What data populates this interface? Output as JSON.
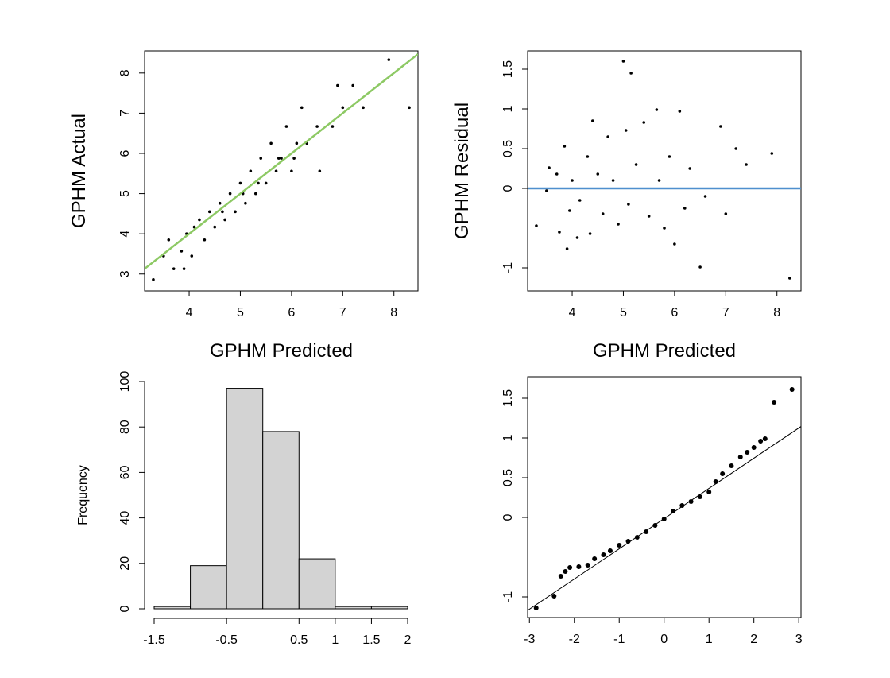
{
  "chart_data": [
    {
      "type": "scatter",
      "xlabel": "GPHM Predicted",
      "ylabel": "GPHM Actual",
      "x": [
        3.3,
        3.5,
        3.6,
        3.7,
        3.85,
        3.9,
        3.95,
        4.05,
        4.1,
        4.2,
        4.3,
        4.4,
        4.5,
        4.6,
        4.7,
        4.8,
        4.9,
        5.0,
        5.1,
        5.2,
        5.3,
        5.4,
        5.5,
        5.6,
        5.7,
        5.8,
        5.9,
        6.0,
        6.1,
        6.2,
        6.3,
        6.5,
        6.55,
        6.8,
        6.9,
        7.0,
        7.2,
        7.4,
        7.9,
        8.3,
        5.05,
        5.35,
        4.65,
        5.75,
        6.05
      ],
      "values": [
        2.86,
        3.45,
        3.85,
        3.13,
        3.57,
        3.13,
        4.0,
        3.45,
        4.17,
        4.35,
        3.85,
        4.55,
        4.17,
        4.76,
        4.35,
        5.0,
        4.55,
        5.26,
        4.76,
        5.56,
        5.0,
        5.88,
        5.26,
        6.25,
        5.56,
        5.88,
        6.67,
        5.56,
        6.25,
        7.14,
        6.25,
        6.67,
        5.56,
        6.67,
        7.69,
        7.14,
        7.69,
        7.14,
        8.33,
        7.14,
        5.0,
        5.26,
        4.55,
        5.88,
        5.88
      ],
      "color": "#000000",
      "xlim": [
        3.13,
        8.47
      ],
      "ylim": [
        2.58,
        8.55
      ],
      "xticks": [
        4,
        5,
        6,
        7,
        8
      ],
      "yticks": [
        3,
        4,
        5,
        6,
        7,
        8
      ],
      "line": {
        "intercept": 0,
        "slope": 1,
        "color": "#8dc964"
      }
    },
    {
      "type": "scatter",
      "xlabel": "GPHM Predicted",
      "ylabel": "GPHM Residual",
      "x": [
        3.3,
        3.5,
        3.55,
        3.7,
        3.75,
        3.85,
        3.9,
        3.95,
        4.0,
        4.1,
        4.15,
        4.3,
        4.35,
        4.4,
        4.5,
        4.6,
        4.7,
        4.8,
        4.9,
        5.0,
        5.05,
        5.15,
        5.1,
        5.25,
        5.4,
        5.5,
        5.65,
        5.7,
        5.8,
        5.9,
        6.0,
        6.1,
        6.2,
        6.3,
        6.5,
        6.6,
        6.9,
        7.0,
        7.2,
        7.4,
        7.9,
        8.25
      ],
      "values": [
        -0.47,
        -0.03,
        0.26,
        0.18,
        -0.55,
        0.53,
        -0.76,
        -0.28,
        0.1,
        -0.62,
        -0.15,
        0.4,
        -0.57,
        0.85,
        0.18,
        -0.32,
        0.65,
        0.1,
        -0.45,
        1.6,
        0.73,
        1.45,
        -0.2,
        0.3,
        0.83,
        -0.35,
        0.99,
        0.1,
        -0.5,
        0.4,
        -0.7,
        0.97,
        -0.25,
        0.25,
        -0.99,
        -0.1,
        0.78,
        -0.32,
        0.5,
        0.3,
        0.44,
        -1.13
      ],
      "color": "#000000",
      "xlim": [
        3.13,
        8.47
      ],
      "ylim": [
        -1.29,
        1.73
      ],
      "xticks": [
        4,
        5,
        6,
        7,
        8
      ],
      "yticks": [
        -1.0,
        0.0,
        0.5,
        1.0,
        1.5
      ],
      "hline": {
        "value": 0,
        "color": "#4f8fce"
      }
    },
    {
      "type": "histogram",
      "ylabel": "Frequency",
      "bins": [
        -1.5,
        -1.0,
        -0.5,
        0.0,
        0.5,
        1.0,
        1.5,
        2.0
      ],
      "counts": [
        1,
        19,
        97,
        78,
        22,
        1,
        1
      ],
      "color": "#d3d3d3",
      "xlim": [
        -1.5,
        2.0
      ],
      "ylim": [
        0,
        100
      ],
      "xticks": [
        -1.5,
        -0.5,
        0.5,
        1.0,
        1.5,
        2.0
      ],
      "yticks": [
        0,
        20,
        40,
        60,
        80,
        100
      ]
    },
    {
      "type": "scatter",
      "x": [
        -2.85,
        -2.45,
        -2.3,
        -2.2,
        -2.1,
        -1.9,
        -1.7,
        -1.55,
        -1.35,
        -1.2,
        -1.0,
        -0.8,
        -0.6,
        -0.4,
        -0.2,
        0,
        0.2,
        0.4,
        0.6,
        0.8,
        1.0,
        1.15,
        1.3,
        1.5,
        1.7,
        1.85,
        2.0,
        2.15,
        2.25,
        2.45,
        2.85
      ],
      "values": [
        -1.14,
        -0.99,
        -0.74,
        -0.68,
        -0.63,
        -0.62,
        -0.6,
        -0.52,
        -0.47,
        -0.42,
        -0.35,
        -0.3,
        -0.25,
        -0.18,
        -0.1,
        -0.02,
        0.08,
        0.15,
        0.2,
        0.26,
        0.32,
        0.45,
        0.55,
        0.65,
        0.76,
        0.82,
        0.88,
        0.96,
        0.99,
        1.45,
        1.61
      ],
      "color": "#000000",
      "xlim": [
        -3.04,
        3.05
      ],
      "ylim": [
        -1.26,
        1.77
      ],
      "xticks": [
        -3,
        -2,
        -1,
        0,
        1,
        2,
        3
      ],
      "yticks": [
        -1.0,
        0.0,
        0.5,
        1.0,
        1.5
      ],
      "line": {
        "intercept": -0.015,
        "slope": 0.38,
        "color": "#000000"
      }
    }
  ]
}
